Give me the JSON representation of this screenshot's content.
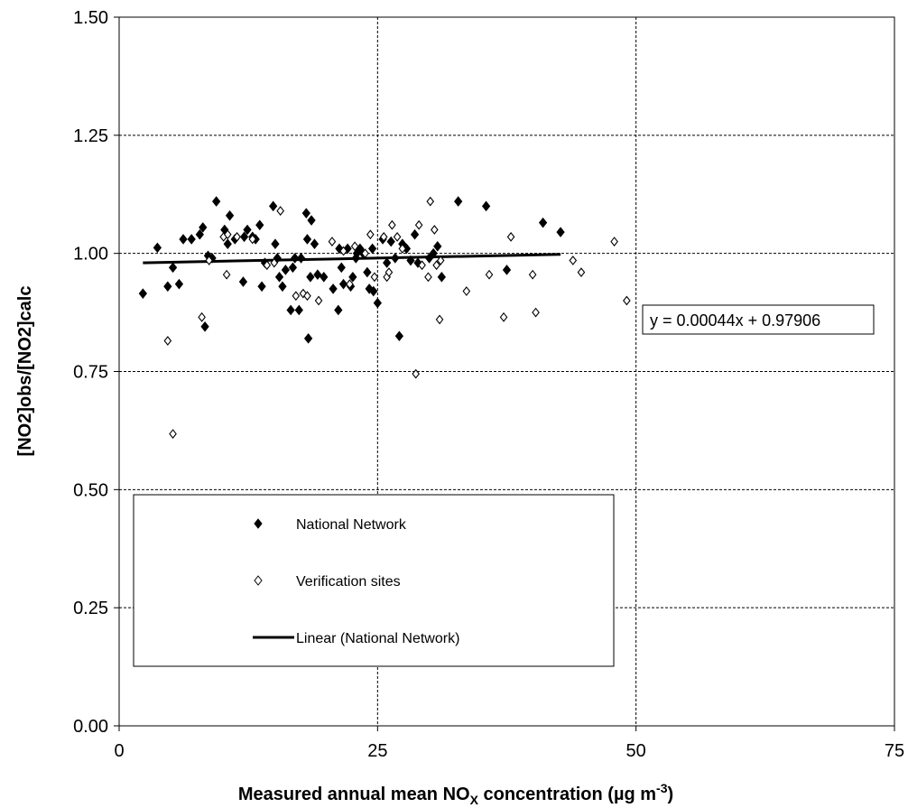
{
  "chart_data": {
    "type": "scatter",
    "xlabel_main": "Measured annual mean NO",
    "xlabel_sub": "X",
    "xlabel_rest": " concentration (µg m",
    "xlabel_sup": "-3",
    "xlabel_end": ")",
    "ylabel": "[NO2]obs/[NO2]calc",
    "xlim": [
      0,
      75
    ],
    "ylim": [
      0,
      1.5
    ],
    "xticks": [
      "0",
      "25",
      "50",
      "75"
    ],
    "yticks": [
      "0.00",
      "0.25",
      "0.50",
      "0.75",
      "1.00",
      "1.25",
      "1.50"
    ],
    "grid": true,
    "legend_position": "lower-left",
    "trendline_equation": "y = 0.00044x + 0.97906",
    "series": [
      {
        "name": "National Network",
        "marker": "filled-diamond",
        "color": "#000000",
        "points": [
          [
            2.3,
            0.915
          ],
          [
            3.7,
            1.012
          ],
          [
            4.7,
            0.93
          ],
          [
            5.2,
            0.97
          ],
          [
            5.8,
            0.935
          ],
          [
            6.2,
            1.03
          ],
          [
            7.0,
            1.03
          ],
          [
            7.8,
            1.04
          ],
          [
            8.1,
            1.055
          ],
          [
            8.3,
            0.845
          ],
          [
            8.6,
            0.995
          ],
          [
            9.0,
            0.99
          ],
          [
            9.4,
            1.11
          ],
          [
            10.2,
            1.05
          ],
          [
            10.5,
            1.02
          ],
          [
            10.7,
            1.08
          ],
          [
            11.2,
            1.03
          ],
          [
            12.0,
            0.94
          ],
          [
            12.1,
            1.035
          ],
          [
            12.4,
            1.05
          ],
          [
            12.9,
            1.035
          ],
          [
            13.2,
            1.03
          ],
          [
            13.6,
            1.06
          ],
          [
            13.8,
            0.93
          ],
          [
            14.1,
            0.98
          ],
          [
            14.9,
            1.1
          ],
          [
            15.1,
            1.02
          ],
          [
            15.3,
            0.99
          ],
          [
            15.5,
            0.95
          ],
          [
            15.8,
            0.93
          ],
          [
            16.1,
            0.965
          ],
          [
            16.6,
            0.88
          ],
          [
            16.8,
            0.97
          ],
          [
            17.0,
            0.99
          ],
          [
            17.4,
            0.88
          ],
          [
            17.6,
            0.99
          ],
          [
            18.1,
            1.085
          ],
          [
            18.2,
            1.03
          ],
          [
            18.3,
            0.82
          ],
          [
            18.5,
            0.95
          ],
          [
            18.6,
            1.07
          ],
          [
            18.9,
            1.02
          ],
          [
            19.2,
            0.955
          ],
          [
            19.8,
            0.95
          ],
          [
            20.7,
            0.925
          ],
          [
            21.2,
            0.88
          ],
          [
            21.3,
            1.01
          ],
          [
            21.5,
            0.97
          ],
          [
            21.7,
            0.935
          ],
          [
            22.1,
            1.01
          ],
          [
            22.4,
            0.93
          ],
          [
            22.6,
            0.95
          ],
          [
            22.9,
            0.99
          ],
          [
            23.0,
            1.0
          ],
          [
            23.3,
            1.01
          ],
          [
            23.6,
            1.0
          ],
          [
            24.0,
            0.96
          ],
          [
            24.2,
            0.925
          ],
          [
            24.5,
            1.01
          ],
          [
            24.6,
            0.92
          ],
          [
            25.0,
            0.895
          ],
          [
            25.5,
            1.03
          ],
          [
            25.9,
            0.98
          ],
          [
            26.3,
            1.025
          ],
          [
            26.7,
            0.99
          ],
          [
            27.1,
            0.825
          ],
          [
            27.4,
            1.02
          ],
          [
            27.8,
            1.01
          ],
          [
            28.2,
            0.985
          ],
          [
            28.6,
            1.04
          ],
          [
            28.9,
            0.98
          ],
          [
            30.0,
            0.99
          ],
          [
            30.4,
            1.0
          ],
          [
            30.8,
            1.015
          ],
          [
            31.2,
            0.95
          ],
          [
            32.8,
            1.11
          ],
          [
            35.5,
            1.1
          ],
          [
            37.5,
            0.965
          ],
          [
            41.0,
            1.065
          ],
          [
            42.7,
            1.045
          ]
        ]
      },
      {
        "name": "Verification sites",
        "marker": "open-diamond",
        "color": "#000000",
        "points": [
          [
            4.7,
            0.815
          ],
          [
            5.2,
            0.618
          ],
          [
            8.0,
            0.865
          ],
          [
            8.7,
            0.985
          ],
          [
            10.1,
            1.035
          ],
          [
            10.5,
            1.04
          ],
          [
            10.4,
            0.955
          ],
          [
            11.4,
            1.035
          ],
          [
            12.9,
            1.03
          ],
          [
            14.3,
            0.975
          ],
          [
            15.0,
            0.98
          ],
          [
            15.6,
            1.09
          ],
          [
            17.1,
            0.91
          ],
          [
            17.8,
            0.915
          ],
          [
            18.2,
            0.91
          ],
          [
            19.3,
            0.9
          ],
          [
            20.6,
            1.025
          ],
          [
            21.7,
            1.005
          ],
          [
            22.3,
            0.935
          ],
          [
            22.8,
            1.015
          ],
          [
            23.8,
            1.0
          ],
          [
            24.3,
            1.04
          ],
          [
            24.7,
            0.95
          ],
          [
            25.6,
            1.035
          ],
          [
            25.9,
            0.95
          ],
          [
            26.1,
            0.96
          ],
          [
            26.4,
            1.06
          ],
          [
            26.9,
            1.035
          ],
          [
            27.4,
            1.01
          ],
          [
            28.7,
            0.745
          ],
          [
            29.0,
            1.06
          ],
          [
            29.3,
            0.975
          ],
          [
            29.9,
            0.95
          ],
          [
            30.1,
            1.11
          ],
          [
            30.5,
            1.05
          ],
          [
            30.7,
            0.975
          ],
          [
            31.1,
            0.985
          ],
          [
            31.0,
            0.86
          ],
          [
            33.6,
            0.92
          ],
          [
            35.8,
            0.955
          ],
          [
            37.2,
            0.865
          ],
          [
            37.9,
            1.035
          ],
          [
            40.0,
            0.955
          ],
          [
            40.3,
            0.875
          ],
          [
            43.9,
            0.985
          ],
          [
            44.7,
            0.96
          ],
          [
            47.9,
            1.025
          ],
          [
            49.1,
            0.9
          ]
        ]
      }
    ],
    "trendline": {
      "name": "Linear (National Network)",
      "series": "National Network",
      "x_range": [
        2.3,
        42.7
      ],
      "slope": 0.00044,
      "intercept": 0.97906
    }
  }
}
